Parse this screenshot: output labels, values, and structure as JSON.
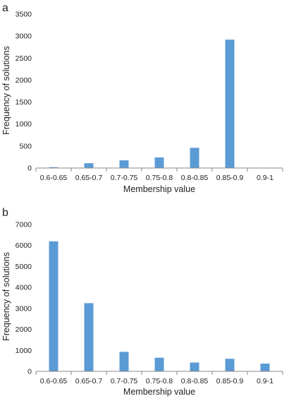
{
  "chart_data": [
    {
      "panel_label": "a",
      "type": "bar",
      "categories": [
        "0.6-0.65",
        "0.65-0.7",
        "0.7-0.75",
        "0.75-0.8",
        "0.8-0.85",
        "0.85-0.9",
        "0.9-1"
      ],
      "values": [
        20,
        110,
        175,
        240,
        460,
        2920,
        0
      ],
      "xlabel": "Membership value",
      "ylabel": "Frequency of solutions",
      "ylim": [
        0,
        3500
      ],
      "yticks": [
        "0",
        "500",
        "1000",
        "1500",
        "2000",
        "2500",
        "3000",
        "3500"
      ],
      "grid": false,
      "color": "#5b9bd5"
    },
    {
      "panel_label": "b",
      "type": "bar",
      "categories": [
        "0.6-0.65",
        "0.65-0.7",
        "0.7-0.75",
        "0.75-0.8",
        "0.8-0.85",
        "0.85-0.9",
        "0.9-1"
      ],
      "values": [
        6200,
        3250,
        930,
        650,
        420,
        600,
        370
      ],
      "xlabel": "Membership value",
      "ylabel": "Frequency of solutions",
      "ylim": [
        0,
        7000
      ],
      "yticks": [
        "0",
        "1000",
        "2000",
        "3000",
        "4000",
        "5000",
        "6000",
        "7000"
      ],
      "grid": false,
      "color": "#5b9bd5"
    }
  ]
}
